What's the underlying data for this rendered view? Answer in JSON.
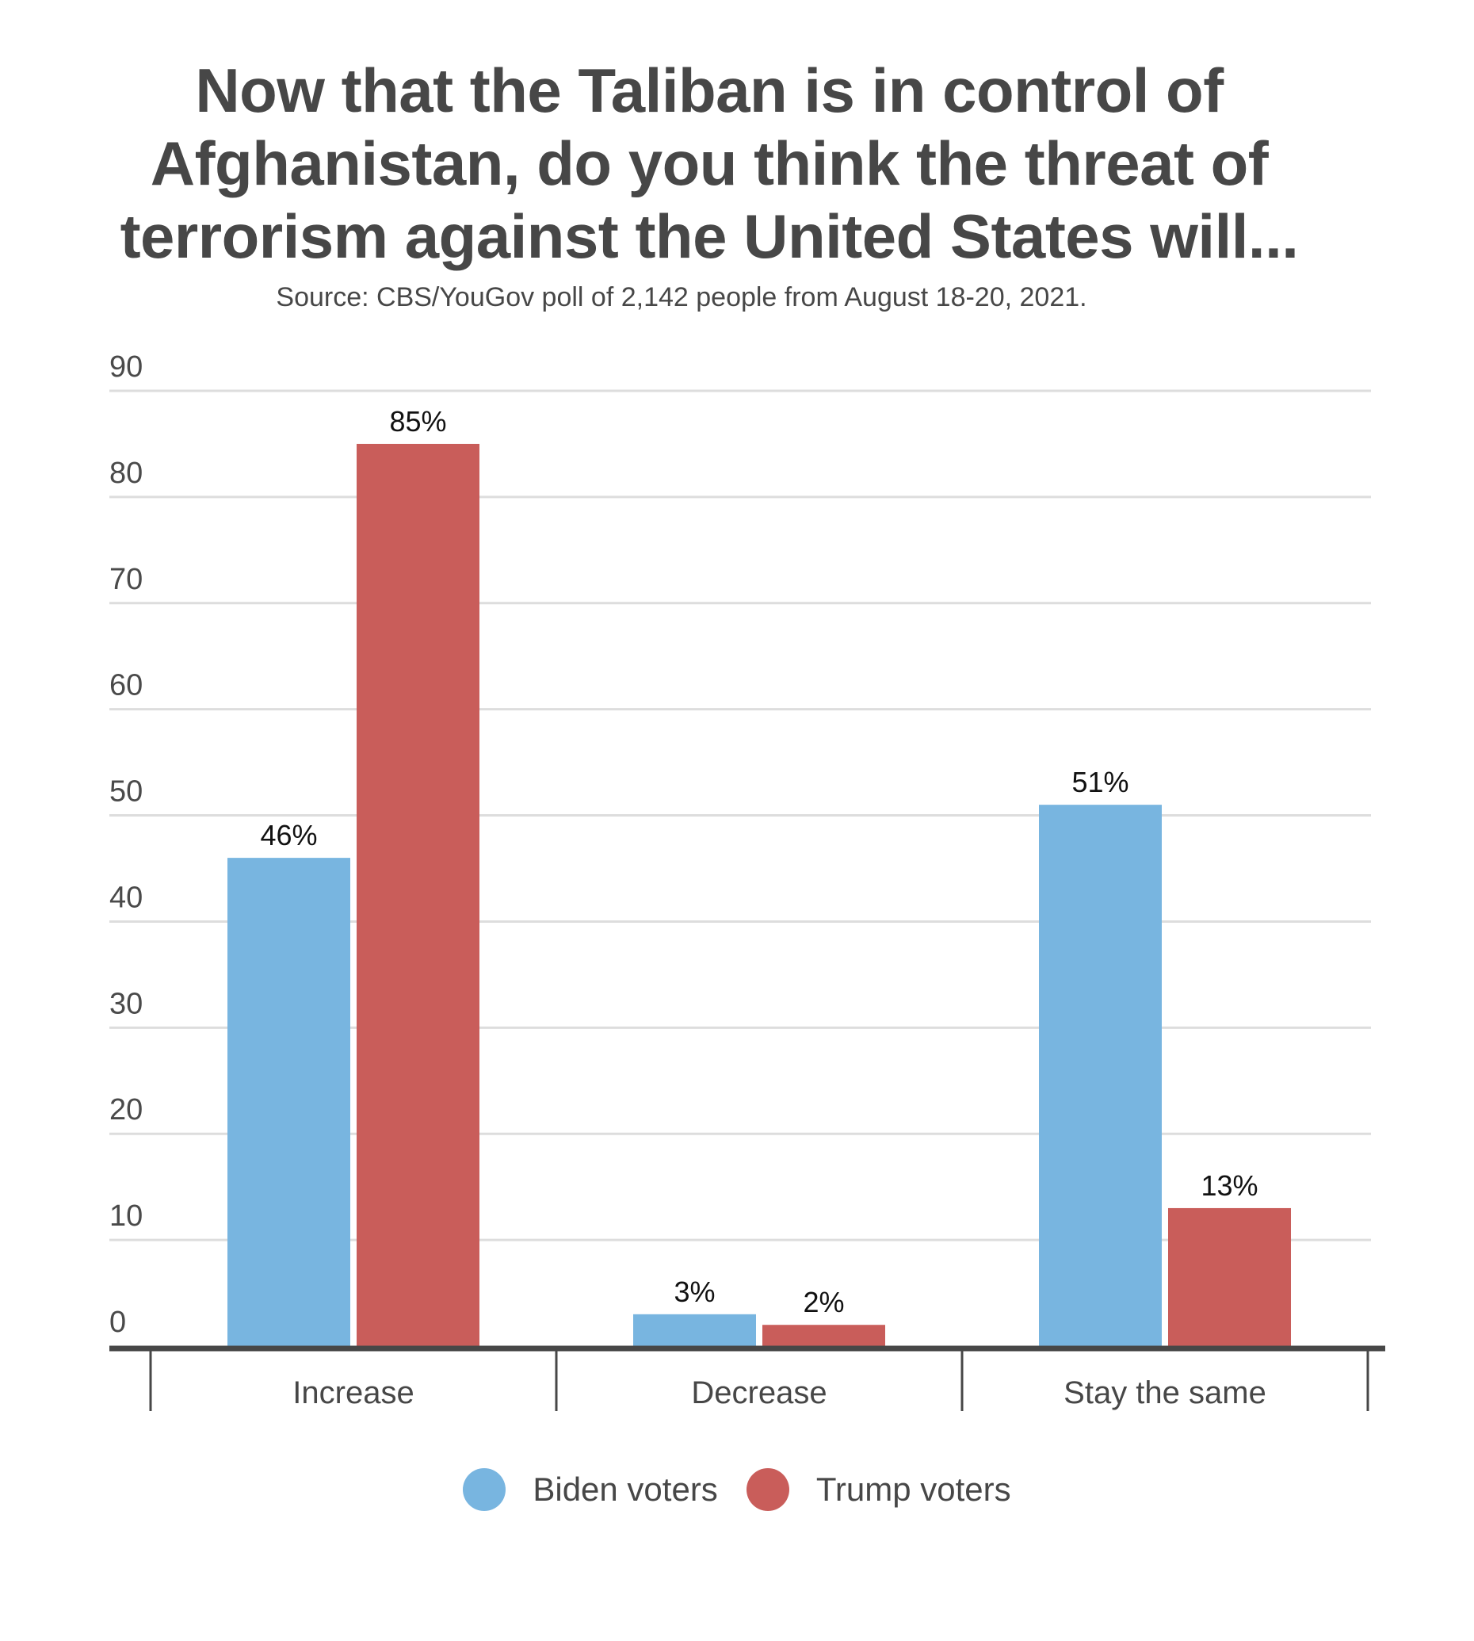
{
  "chart_data": {
    "type": "bar",
    "title_lines": [
      "Now that the Taliban is in control of",
      "Afghanistan, do you think the threat of",
      "terrorism against the United States will..."
    ],
    "subtitle": "Source: CBS/YouGov poll of 2,142 people from August 18-20, 2021.",
    "categories": [
      "Increase",
      "Decrease",
      "Stay the same"
    ],
    "series": [
      {
        "name": "Biden voters",
        "color": "#78b5e0",
        "values": [
          46,
          3,
          51
        ],
        "labels": [
          "46%",
          "3%",
          "51%"
        ]
      },
      {
        "name": "Trump voters",
        "color": "#c95d5a",
        "values": [
          85,
          2,
          13
        ],
        "labels": [
          "85%",
          "2%",
          "13%"
        ]
      }
    ],
    "yticks": [
      0,
      10,
      20,
      30,
      40,
      50,
      60,
      70,
      80,
      90
    ],
    "ylim": [
      0,
      90
    ],
    "xlabel": "",
    "ylabel": "",
    "grid": true,
    "legend": "bottom-center"
  }
}
